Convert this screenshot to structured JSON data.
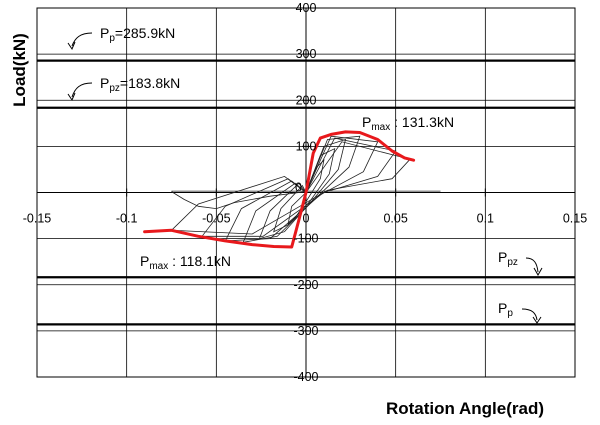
{
  "chart_data": {
    "type": "line",
    "xlabel": "Rotation Angle(rad)",
    "ylabel": "Load(kN)",
    "xlim": [
      -0.15,
      0.15
    ],
    "ylim": [
      -400,
      400
    ],
    "x_ticks": [
      -0.15,
      -0.1,
      -0.05,
      0,
      0.05,
      0.1,
      0.15
    ],
    "x_tick_labels": [
      "-0.15",
      "-0.1",
      "-0.05",
      "0",
      "0.05",
      "0.1",
      "0.15"
    ],
    "y_ticks": [
      -400,
      -300,
      -200,
      -100,
      0,
      100,
      200,
      300,
      400
    ],
    "y_tick_labels": [
      "-400",
      "-300",
      "-200",
      "-100",
      "0",
      "100",
      "200",
      "300",
      "400"
    ],
    "grid": true,
    "reference_lines": [
      {
        "name": "Pp",
        "value": 285.9
      },
      {
        "name": "Ppz",
        "value": 183.8
      },
      {
        "name": "Ppz",
        "value": -183.8
      },
      {
        "name": "Pp",
        "value": -285.9
      }
    ],
    "annotations": {
      "pp_top": {
        "main": "P",
        "sub": "p",
        "rest": "=285.9kN"
      },
      "ppz_top": {
        "main": "P",
        "sub": "pz",
        "rest": "=183.8kN"
      },
      "pmax_pos": {
        "main": "P",
        "sub": "max",
        "rest": " : 131.3kN"
      },
      "pmax_neg": {
        "main": "P",
        "sub": "max",
        "rest": " : 118.1kN"
      },
      "ppz_bottom": {
        "main": "P",
        "sub": "pz",
        "rest": ""
      },
      "pp_bottom": {
        "main": "P",
        "sub": "p",
        "rest": ""
      }
    },
    "envelope": {
      "color": "#e8191c",
      "points": [
        [
          -0.09,
          -85
        ],
        [
          -0.075,
          -82
        ],
        [
          -0.06,
          -95
        ],
        [
          -0.045,
          -105
        ],
        [
          -0.03,
          -113
        ],
        [
          -0.018,
          -117
        ],
        [
          -0.008,
          -118.1
        ],
        [
          -0.004,
          -60
        ],
        [
          0.0,
          0
        ],
        [
          0.004,
          85
        ],
        [
          0.008,
          118
        ],
        [
          0.014,
          126
        ],
        [
          0.022,
          131.3
        ],
        [
          0.03,
          130
        ],
        [
          0.04,
          115
        ],
        [
          0.048,
          90
        ],
        [
          0.055,
          75
        ],
        [
          0.06,
          70
        ]
      ]
    },
    "cycles": [
      {
        "points": [
          [
            0.0,
            0
          ],
          [
            0.006,
            55
          ],
          [
            0.01,
            70
          ],
          [
            0.008,
            30
          ],
          [
            0.0,
            -20
          ],
          [
            -0.006,
            -55
          ],
          [
            -0.01,
            -68
          ],
          [
            -0.008,
            -30
          ],
          [
            0.0,
            0
          ]
        ]
      },
      {
        "points": [
          [
            0.0,
            0
          ],
          [
            0.008,
            80
          ],
          [
            0.016,
            95
          ],
          [
            0.013,
            40
          ],
          [
            0.002,
            -20
          ],
          [
            -0.01,
            -70
          ],
          [
            -0.018,
            -85
          ],
          [
            -0.014,
            -35
          ],
          [
            -0.002,
            15
          ],
          [
            0.0,
            0
          ]
        ]
      },
      {
        "points": [
          [
            0.0,
            0
          ],
          [
            0.01,
            100
          ],
          [
            0.022,
            115
          ],
          [
            0.018,
            50
          ],
          [
            0.004,
            -15
          ],
          [
            -0.012,
            -85
          ],
          [
            -0.026,
            -100
          ],
          [
            -0.02,
            -40
          ],
          [
            -0.004,
            20
          ],
          [
            0.0,
            0
          ]
        ]
      },
      {
        "points": [
          [
            0.0,
            0
          ],
          [
            0.012,
            115
          ],
          [
            0.03,
            122
          ],
          [
            0.024,
            55
          ],
          [
            0.006,
            -10
          ],
          [
            -0.016,
            -95
          ],
          [
            -0.035,
            -108
          ],
          [
            -0.028,
            -40
          ],
          [
            -0.006,
            20
          ],
          [
            0.0,
            0
          ]
        ]
      },
      {
        "points": [
          [
            0.0,
            0
          ],
          [
            0.014,
            122
          ],
          [
            0.04,
            110
          ],
          [
            0.032,
            45
          ],
          [
            0.008,
            -5
          ],
          [
            -0.02,
            -100
          ],
          [
            -0.045,
            -105
          ],
          [
            -0.036,
            -35
          ],
          [
            -0.008,
            25
          ],
          [
            0.0,
            0
          ]
        ]
      },
      {
        "points": [
          [
            0.0,
            0
          ],
          [
            0.016,
            118
          ],
          [
            0.05,
            90
          ],
          [
            0.04,
            35
          ],
          [
            0.01,
            0
          ],
          [
            -0.024,
            -95
          ],
          [
            -0.058,
            -95
          ],
          [
            -0.045,
            -30
          ],
          [
            -0.01,
            30
          ],
          [
            0.0,
            0
          ]
        ]
      },
      {
        "points": [
          [
            0.0,
            0
          ],
          [
            0.02,
            110
          ],
          [
            0.058,
            72
          ],
          [
            0.048,
            30
          ],
          [
            0.012,
            5
          ],
          [
            -0.03,
            -90
          ],
          [
            -0.075,
            -82
          ],
          [
            -0.06,
            -25
          ],
          [
            -0.012,
            35
          ],
          [
            0.0,
            0
          ]
        ]
      },
      {
        "points": [
          [
            -0.075,
            3
          ],
          [
            -0.03,
            3
          ],
          [
            0.0,
            3
          ],
          [
            0.04,
            3
          ],
          [
            0.075,
            3
          ]
        ]
      },
      {
        "points": [
          [
            -0.075,
            2
          ],
          [
            -0.068,
            -15
          ],
          [
            -0.06,
            -30
          ],
          [
            -0.05,
            -35
          ],
          [
            -0.04,
            -22
          ],
          [
            -0.02,
            -8
          ],
          [
            0.0,
            2
          ]
        ]
      }
    ]
  }
}
